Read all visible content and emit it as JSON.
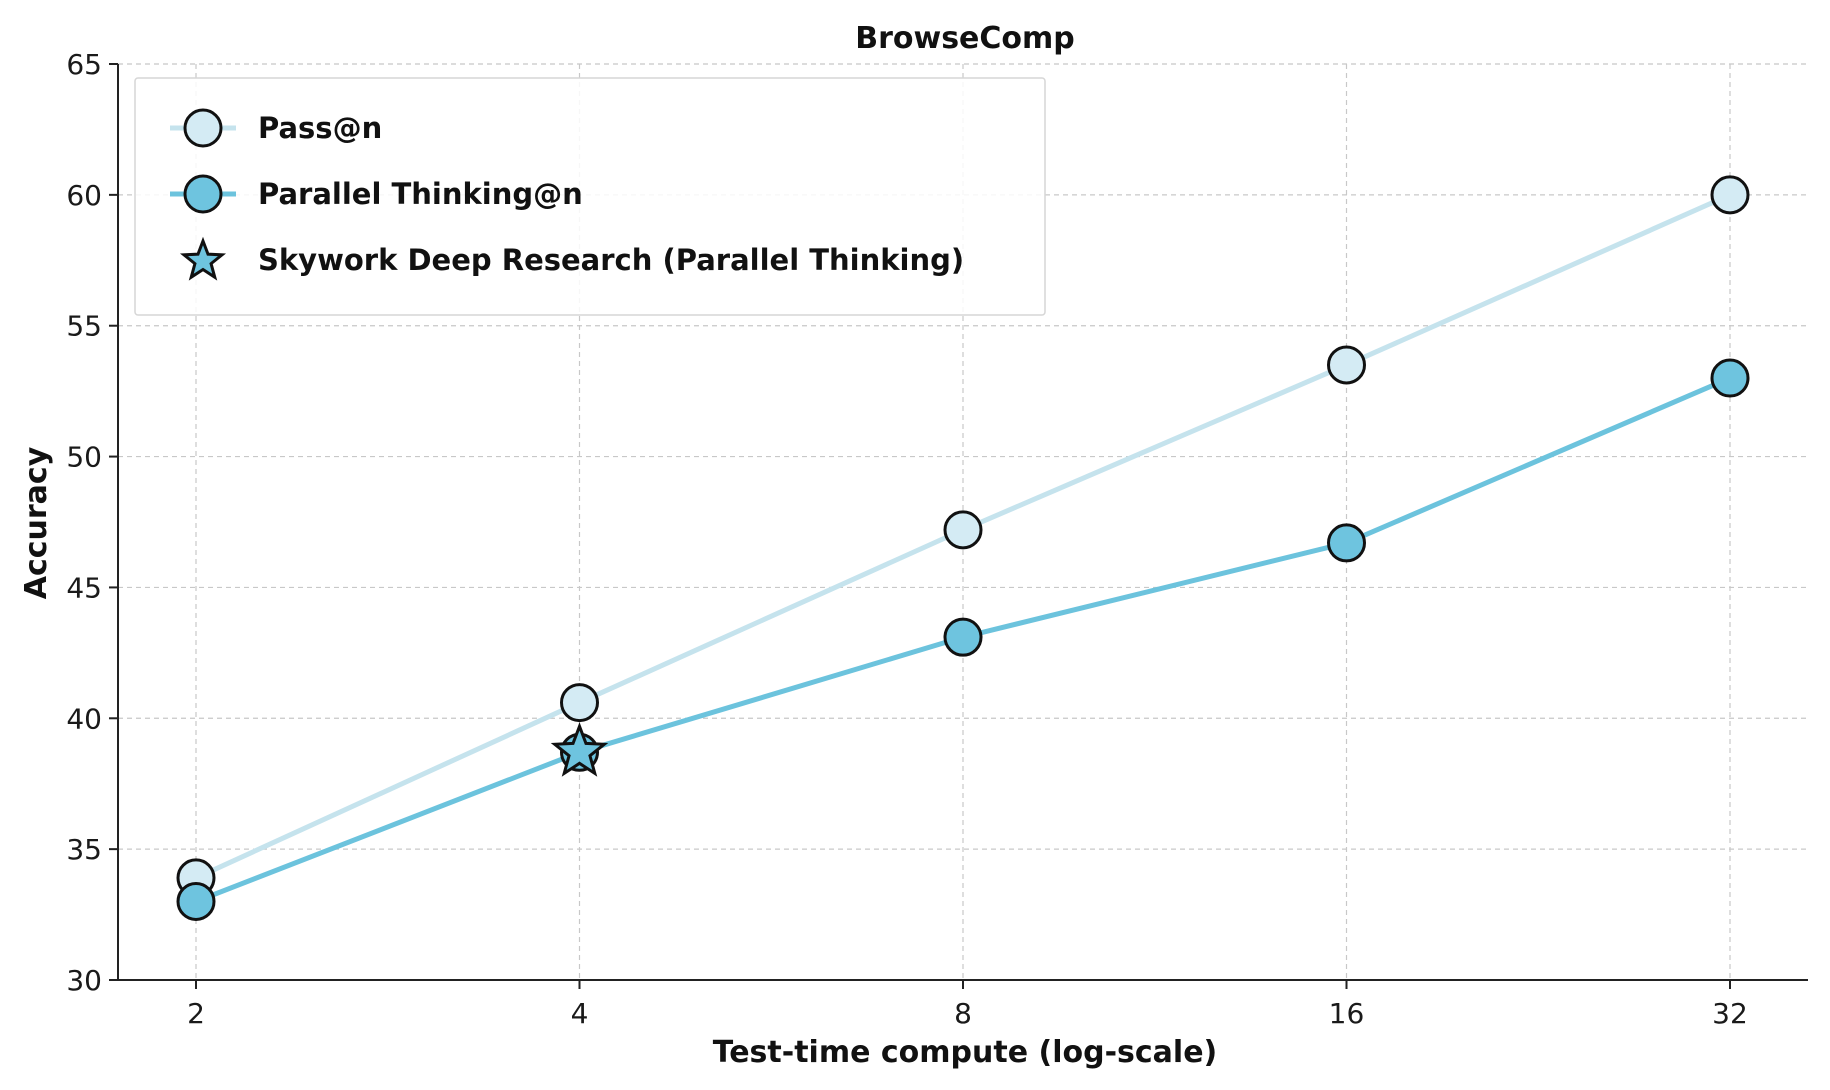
{
  "chart_data": {
    "type": "line",
    "title": "BrowseComp",
    "xlabel": "Test-time compute (log-scale)",
    "ylabel": "Accuracy",
    "x_scale": "log2",
    "x": [
      2,
      4,
      8,
      16,
      32
    ],
    "x_tick_labels": [
      "2",
      "4",
      "8",
      "16",
      "32"
    ],
    "ylim": [
      30,
      65
    ],
    "y_ticks": [
      30,
      35,
      40,
      45,
      50,
      55,
      60,
      65
    ],
    "grid": true,
    "legend_position": "upper-left",
    "series": [
      {
        "name": "Pass@n",
        "marker": "circle",
        "values": [
          33.9,
          40.6,
          47.2,
          53.5,
          60.0
        ],
        "line_color": "#c5e3ed",
        "marker_fill": "#d4ebf4"
      },
      {
        "name": "Parallel Thinking@n",
        "marker": "circle",
        "values": [
          33.0,
          38.7,
          43.1,
          46.7,
          53.0
        ],
        "line_color": "#6cc3dd",
        "marker_fill": "#6ec4df"
      },
      {
        "name": "Skywork Deep Research (Parallel Thinking)",
        "marker": "star",
        "points": [
          {
            "x": 4,
            "y": 38.7
          }
        ],
        "marker_fill": "#6ec4df"
      }
    ]
  }
}
